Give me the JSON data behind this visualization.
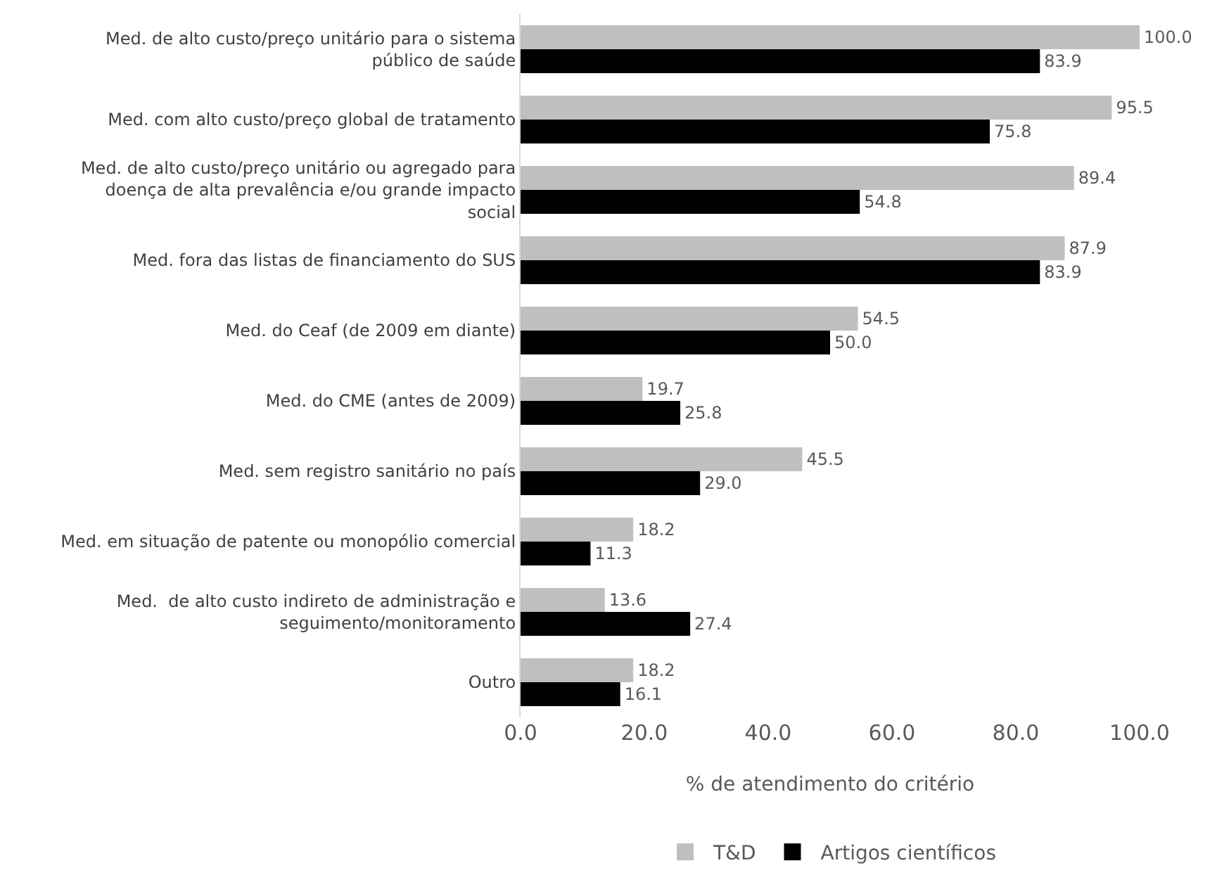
{
  "chart_data": {
    "type": "bar",
    "orientation": "horizontal",
    "categories": [
      "Med. de alto custo/preço unitário para o sistema público de saúde",
      "Med. com alto custo/preço global de tratamento",
      "Med. de alto custo/preço unitário ou agregado para doença de alta prevalência e/ou grande impacto social",
      "Med. fora das listas de financiamento do SUS",
      "Med. do Ceaf (de 2009 em diante)",
      "Med. do CME (antes de 2009)",
      "Med. sem registro sanitário no país",
      "Med. em situação de patente ou monopólio comercial",
      "Med.  de alto custo indireto de administração e seguimento/monitoramento",
      "Outro"
    ],
    "series": [
      {
        "name": "T&D",
        "color": "#bfbfbf",
        "values": [
          100.0,
          95.5,
          89.4,
          87.9,
          54.5,
          19.7,
          45.5,
          18.2,
          13.6,
          18.2
        ],
        "value_labels": [
          "100.0",
          "95.5",
          "89.4",
          "87.9",
          "54.5",
          "19.7",
          "45.5",
          "18.2",
          "13.6",
          "18.2"
        ]
      },
      {
        "name": "Artigos científicos",
        "color": "#000000",
        "values": [
          83.9,
          75.8,
          54.8,
          83.9,
          50.0,
          25.8,
          29.0,
          11.3,
          27.4,
          16.1
        ],
        "value_labels": [
          "83.9",
          "75.8",
          "54.8",
          "83.9",
          "50.0",
          "25.8",
          "29.0",
          "11.3",
          "27.4",
          "16.1"
        ]
      }
    ],
    "xlabel": "% de atendimento do critério",
    "xlim": [
      0,
      100
    ],
    "xticks": [
      {
        "value": 0,
        "label": "0.0"
      },
      {
        "value": 20,
        "label": "20.0"
      },
      {
        "value": 40,
        "label": "40.0"
      },
      {
        "value": 60,
        "label": "60.0"
      },
      {
        "value": 80,
        "label": "80.0"
      },
      {
        "value": 100,
        "label": "100.0"
      }
    ],
    "grid": false,
    "legend": "bottom"
  }
}
